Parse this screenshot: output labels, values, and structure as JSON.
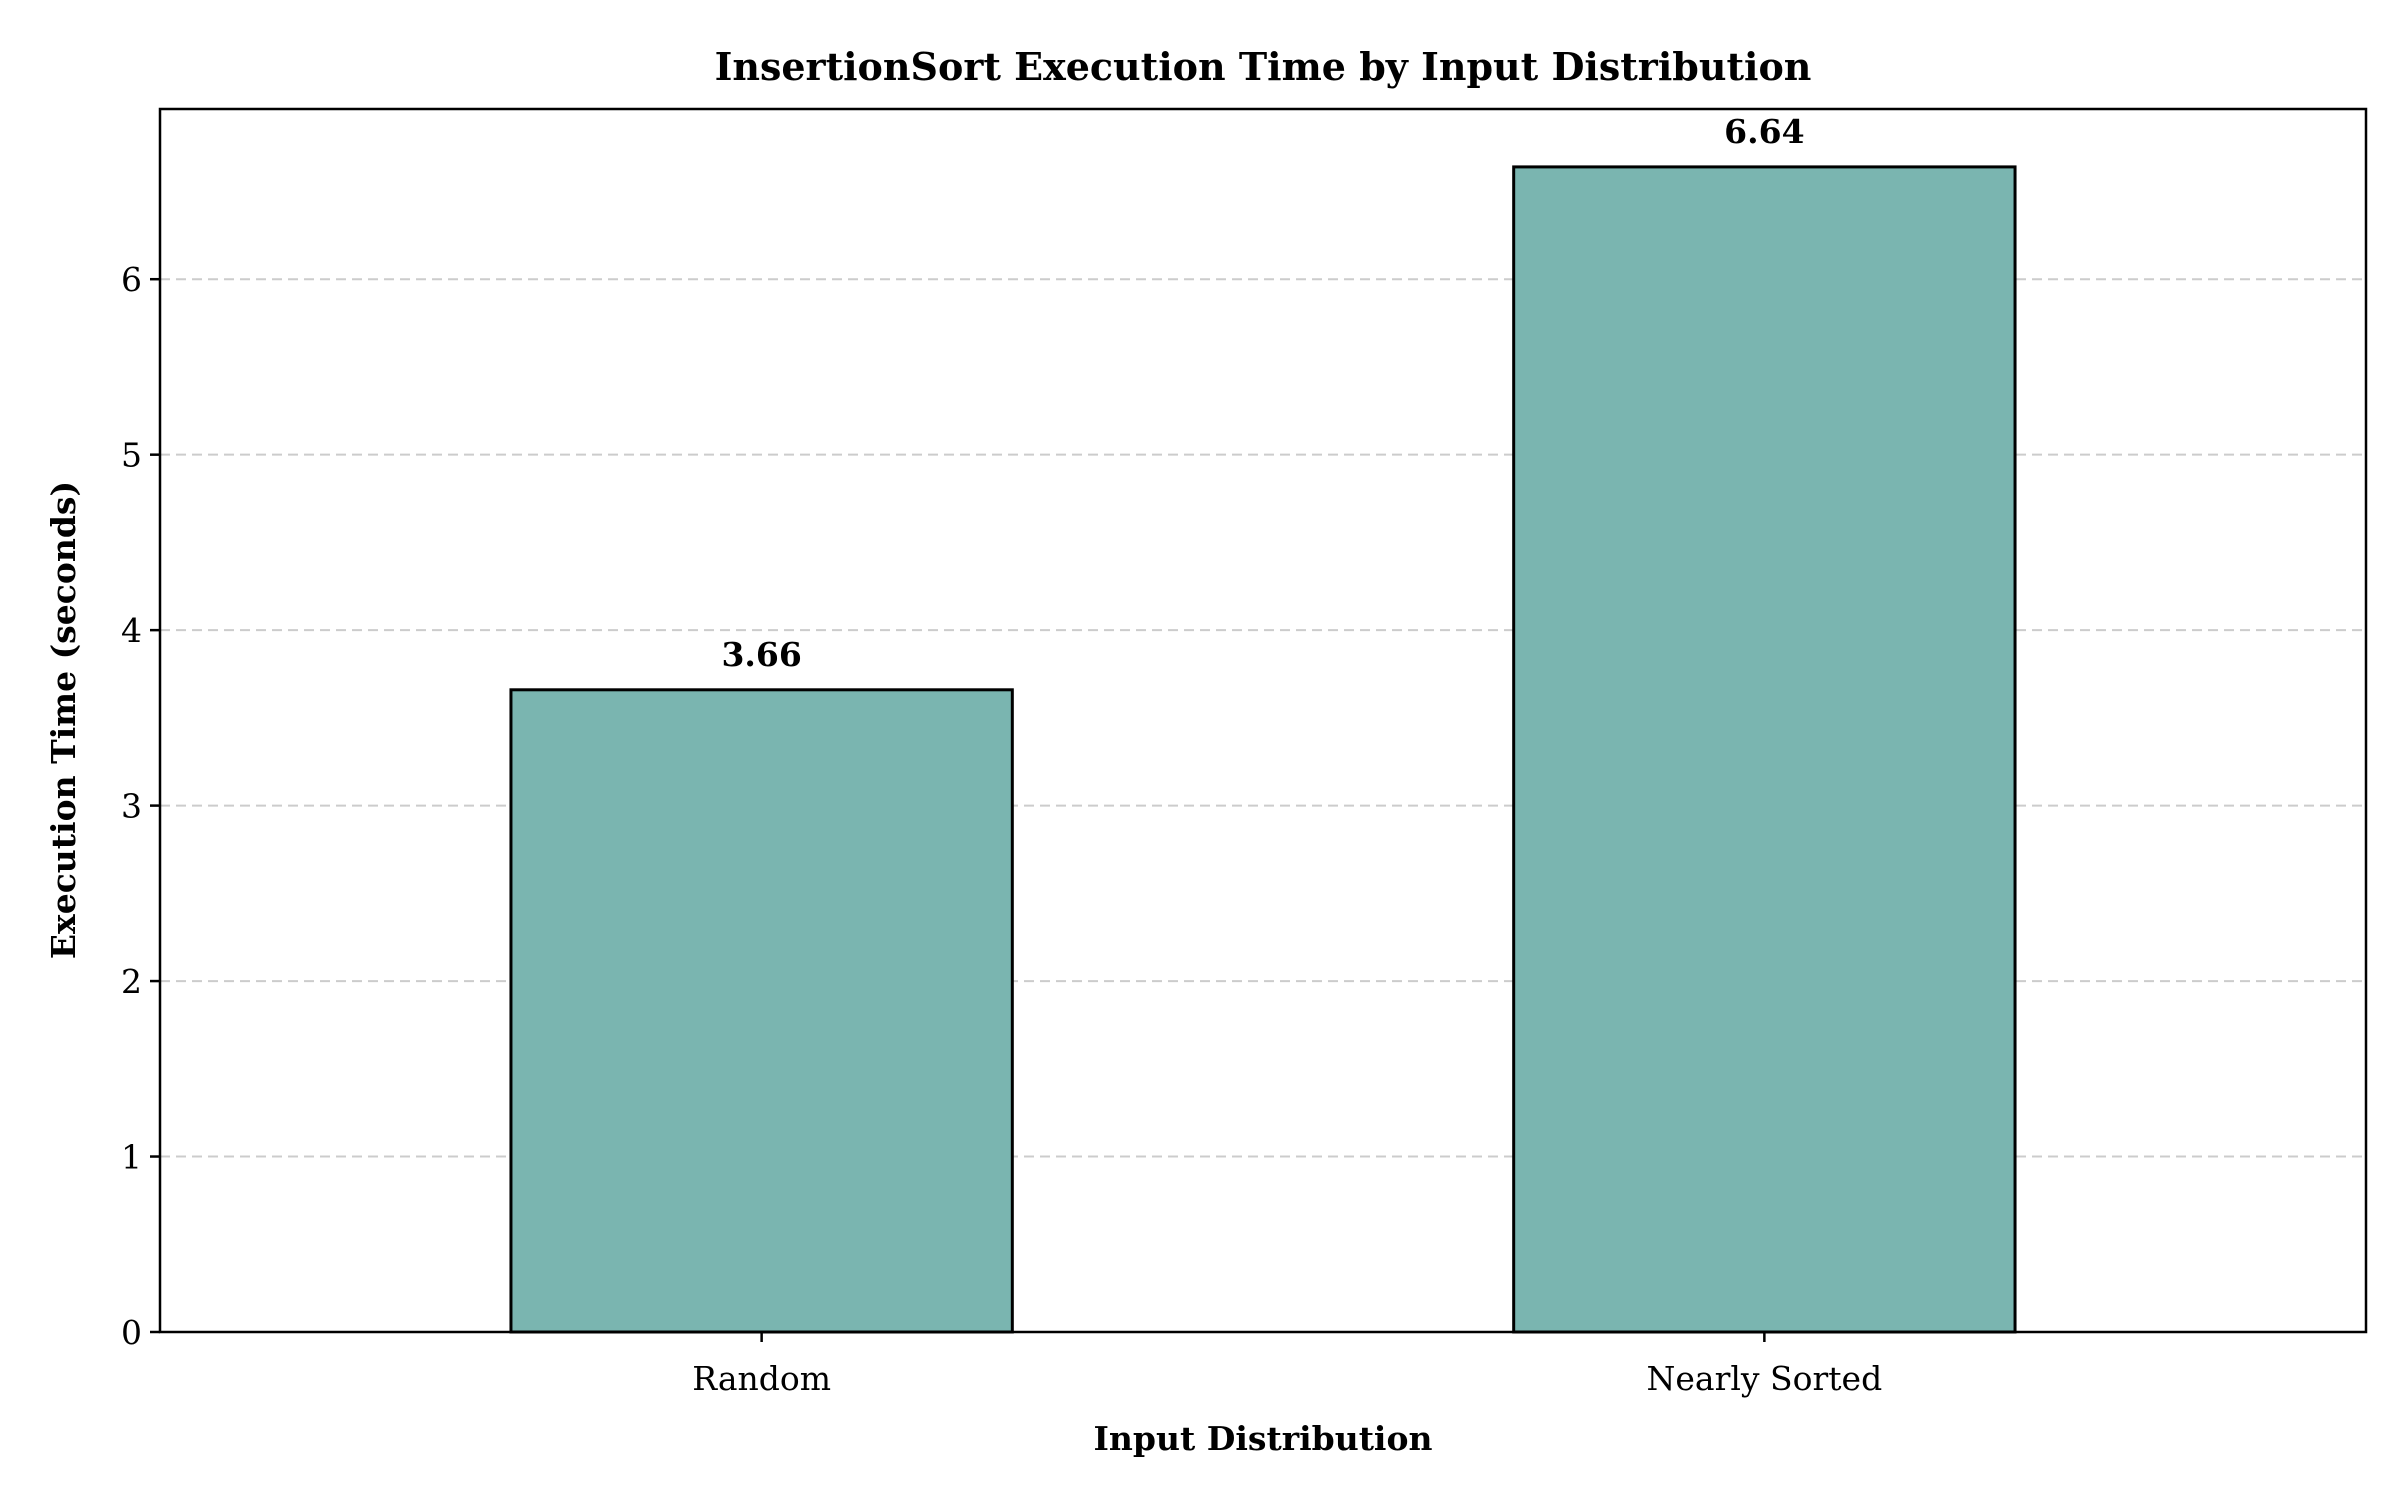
{
  "chart_data": {
    "type": "bar",
    "title": "InsertionSort Execution Time by Input Distribution",
    "xlabel": "Input Distribution",
    "ylabel": "Execution Time (seconds)",
    "categories": [
      "Random",
      "Nearly Sorted"
    ],
    "values": [
      3.66,
      6.64
    ],
    "data_labels": [
      "3.66",
      "6.64"
    ],
    "ylim": [
      0,
      6.97
    ],
    "yticks": [
      0,
      1,
      2,
      3,
      4,
      5,
      6
    ],
    "grid": "y-dashed",
    "bar_color": "#7ab5b0",
    "edge_color": "#000000"
  }
}
